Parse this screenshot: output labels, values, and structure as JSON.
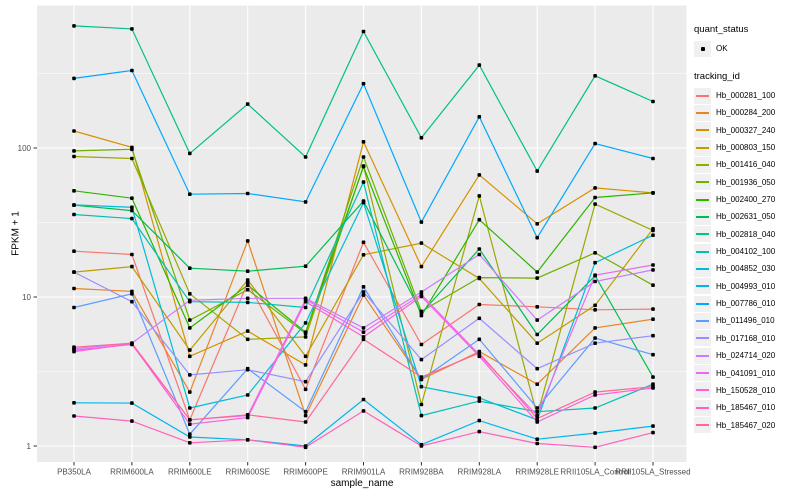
{
  "figure": {
    "background": "#FFFFFF",
    "panel_background": "#EBEBEB",
    "grid_color": "#FFFFFF",
    "point_color": "#000000",
    "axis_text_color": "#4D4D4D",
    "tick_mark_color": "#333333"
  },
  "legend": {
    "quant_status_title": "quant_status",
    "quant_status_ok_label": "OK",
    "tracking_id_title": "tracking_id"
  },
  "chart_data": {
    "type": "line",
    "title": "",
    "xlabel": "sample_name",
    "ylabel": "FPKM + 1",
    "y_scale": "log10",
    "ylim": [
      0.78,
      890
    ],
    "y_major_ticks": [
      1,
      10,
      100
    ],
    "y_minor_ticks": [
      3.1623,
      31.623,
      316.23
    ],
    "grid": true,
    "legend_position": "right",
    "marker": "black-square",
    "categories": [
      "PB350LA",
      "RRIM600LA",
      "RRIM600LE",
      "RRIM600SE",
      "RRIM600PE",
      "RRIM901LA",
      "RRIM928BA",
      "RRIM928LA",
      "RRIM928LE",
      "RRII105LA_Control",
      "RRII105LA_Stressed"
    ],
    "series": [
      {
        "name": "Hb_000281_100",
        "color": "#F8766D",
        "values": [
          20.3,
          19.3,
          1.5,
          12.5,
          2.4,
          23.3,
          4.8,
          8.9,
          8.6,
          8.2,
          8.3
        ]
      },
      {
        "name": "Hb_000284_200",
        "color": "#E88526",
        "values": [
          11.4,
          10.9,
          2.3,
          23.8,
          1.6,
          10.3,
          2.8,
          4.3,
          2.6,
          6.2,
          7.1
        ]
      },
      {
        "name": "Hb_000327_240",
        "color": "#D89000",
        "values": [
          130,
          101,
          4.0,
          5.9,
          3.5,
          110,
          16,
          66,
          31,
          54,
          50
        ]
      },
      {
        "name": "Hb_000803_150",
        "color": "#BE9C00",
        "values": [
          14.7,
          16,
          4.4,
          13,
          4.0,
          19.2,
          23,
          13.3,
          4.9,
          8.8,
          28.7
        ]
      },
      {
        "name": "Hb_001416_040",
        "color": "#9CA700",
        "values": [
          87.7,
          85,
          10.5,
          5.2,
          5.4,
          75.6,
          1.9,
          47.7,
          1.6,
          42,
          28
        ]
      },
      {
        "name": "Hb_001936_050",
        "color": "#6FB000",
        "values": [
          95.6,
          98,
          7.0,
          11.2,
          5.7,
          87,
          8.0,
          13.5,
          13.4,
          19.8,
          12.0
        ]
      },
      {
        "name": "Hb_002400_270",
        "color": "#2FB600",
        "values": [
          51.6,
          46,
          6.2,
          12.0,
          5.8,
          75,
          7.5,
          33,
          14.7,
          46.5,
          50
        ]
      },
      {
        "name": "Hb_002631_050",
        "color": "#00BC51",
        "values": [
          41.3,
          38,
          15.6,
          14.9,
          16.1,
          44,
          7.8,
          21,
          5.6,
          13.9,
          2.9
        ]
      },
      {
        "name": "Hb_002818_040",
        "color": "#00C08B",
        "values": [
          660,
          630,
          92,
          197,
          87,
          605,
          117,
          360,
          70,
          305,
          205
        ]
      },
      {
        "name": "Hb_004102_100",
        "color": "#00C0B4",
        "values": [
          35.8,
          33.6,
          9.3,
          9.2,
          8.5,
          59,
          1.6,
          2.0,
          1.7,
          1.8,
          2.6
        ]
      },
      {
        "name": "Hb_004852_030",
        "color": "#00BCD8",
        "values": [
          41.5,
          40,
          1.8,
          2.2,
          6.7,
          43,
          2.5,
          2.1,
          1.5,
          17,
          26
        ]
      },
      {
        "name": "Hb_004993_010",
        "color": "#00B5EC",
        "values": [
          1.95,
          1.94,
          1.15,
          1.1,
          1.0,
          2.05,
          1.02,
          1.48,
          1.11,
          1.22,
          1.36
        ]
      },
      {
        "name": "Hb_007786_010",
        "color": "#00A9FF",
        "values": [
          293,
          331,
          49,
          49.5,
          43.5,
          270,
          31.8,
          162,
          25,
          107,
          85
        ]
      },
      {
        "name": "Hb_011496_010",
        "color": "#5E9BFF",
        "values": [
          8.5,
          10.5,
          1.2,
          3.3,
          1.7,
          11.7,
          2.8,
          5.2,
          1.8,
          5.3,
          4.1
        ]
      },
      {
        "name": "Hb_017168_010",
        "color": "#9590FF",
        "values": [
          14.7,
          9.3,
          3.0,
          3.25,
          2.7,
          10.8,
          3.8,
          7.2,
          3.3,
          4.9,
          5.5
        ]
      },
      {
        "name": "Hb_024714_020",
        "color": "#C77CFF",
        "values": [
          4.5,
          4.9,
          9.5,
          9.8,
          9.8,
          6.2,
          10.8,
          19.3,
          7.0,
          12.7,
          15.2
        ]
      },
      {
        "name": "Hb_041091_010",
        "color": "#E76BF3",
        "values": [
          4.4,
          4.8,
          1.5,
          1.6,
          9.6,
          5.8,
          10.4,
          4.1,
          1.6,
          14,
          16.4
        ]
      },
      {
        "name": "Hb_150528_010",
        "color": "#FA62DB",
        "values": [
          4.3,
          4.85,
          1.4,
          1.55,
          9.3,
          5.4,
          10.1,
          4.0,
          1.45,
          2.2,
          2.45
        ]
      },
      {
        "name": "Hb_185467_010",
        "color": "#FF61BB",
        "values": [
          1.59,
          1.47,
          1.05,
          1.1,
          0.98,
          1.72,
          1.0,
          1.25,
          1.04,
          0.98,
          1.23
        ]
      },
      {
        "name": "Hb_185467_020",
        "color": "#FF6797",
        "values": [
          4.6,
          4.9,
          1.5,
          1.62,
          1.45,
          5.2,
          2.9,
          4.2,
          1.53,
          2.3,
          2.5
        ]
      }
    ]
  }
}
